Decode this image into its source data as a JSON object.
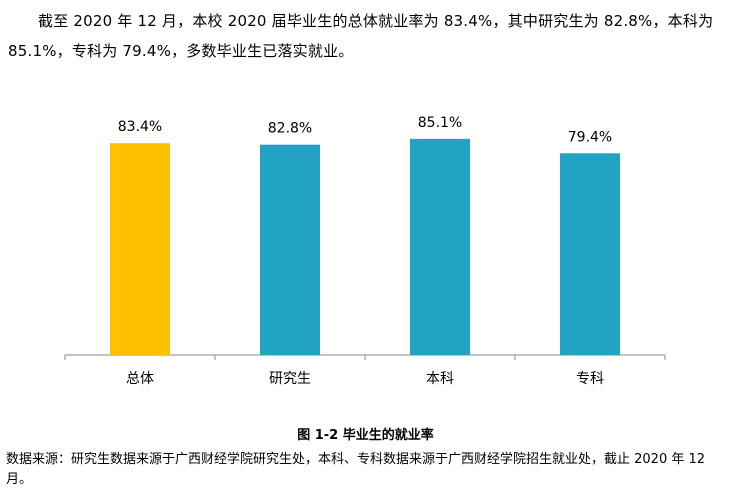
{
  "paragraph": "截至 2020 年 12 月，本校 2020 届毕业生的总体就业率为 83.4%，其中研究生为 82.8%，本科为 85.1%，专科为 79.4%，多数毕业生已落实就业。",
  "chart_data": {
    "type": "bar",
    "categories": [
      "总体",
      "研究生",
      "本科",
      "专科"
    ],
    "values": [
      83.4,
      82.8,
      85.1,
      79.4
    ],
    "value_labels": [
      "83.4%",
      "82.8%",
      "85.1%",
      "79.4%"
    ],
    "colors": [
      "#ffc000",
      "#23a3c4",
      "#23a3c4",
      "#23a3c4"
    ],
    "ylim": [
      0,
      100
    ]
  },
  "caption": "图 1-2 毕业生的就业率",
  "source": "数据来源：研究生数据来源于广西财经学院研究生处，本科、专科数据来源于广西财经学院招生就业处，截止 2020 年 12 月。"
}
